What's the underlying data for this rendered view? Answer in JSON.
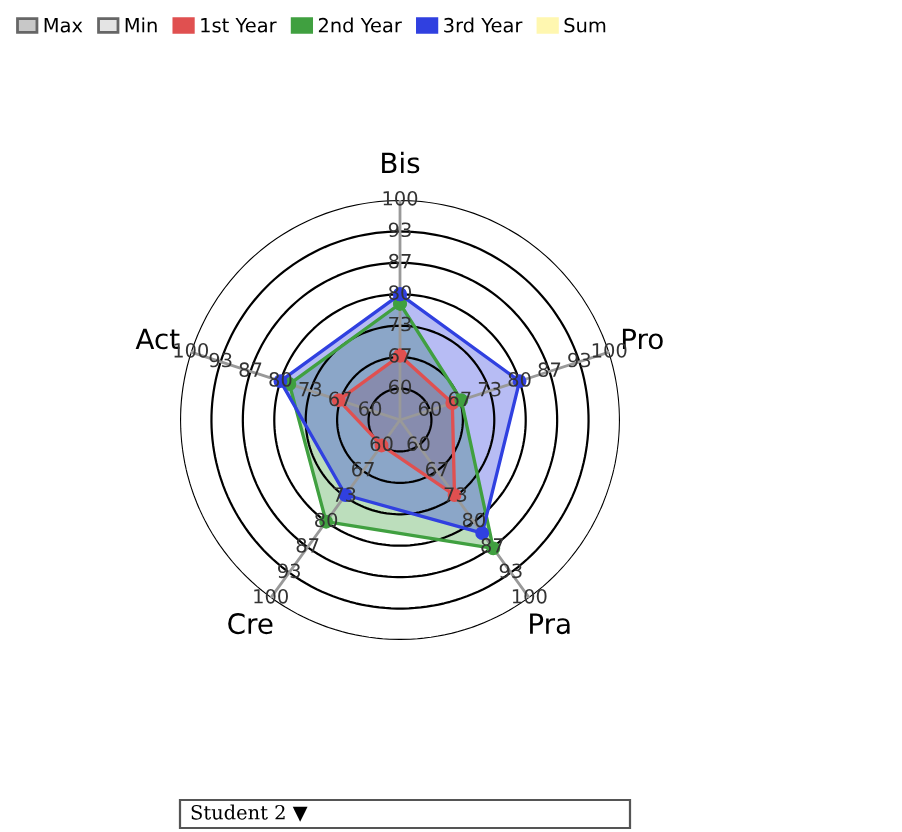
{
  "chart_data": {
    "type": "radar",
    "categories": [
      "Bis",
      "Pro",
      "Pra",
      "Cre",
      "Act"
    ],
    "series": [
      {
        "name": "1st Year",
        "color": "#e05050",
        "values": [
          67,
          65,
          73,
          60,
          67
        ]
      },
      {
        "name": "2nd Year",
        "color": "#40a040",
        "values": [
          78,
          67,
          87,
          80,
          78
        ]
      },
      {
        "name": "3rd Year",
        "color": "#3040e0",
        "values": [
          80,
          80,
          83,
          73,
          80
        ]
      }
    ],
    "ylim": [
      53.33,
      100
    ],
    "yticks": [
      {
        "value": 60,
        "label": "60"
      },
      {
        "value": 66.67,
        "label": "67"
      },
      {
        "value": 73.33,
        "label": "73"
      },
      {
        "value": 80,
        "label": "80"
      },
      {
        "value": 86.67,
        "label": "87"
      },
      {
        "value": 93.33,
        "label": "93"
      },
      {
        "value": 100,
        "label": "100"
      }
    ],
    "legend": "top left",
    "marker": "circle",
    "annotations": [
      "Max",
      "Min",
      "Sum",
      "Student 2 ▼"
    ]
  }
}
